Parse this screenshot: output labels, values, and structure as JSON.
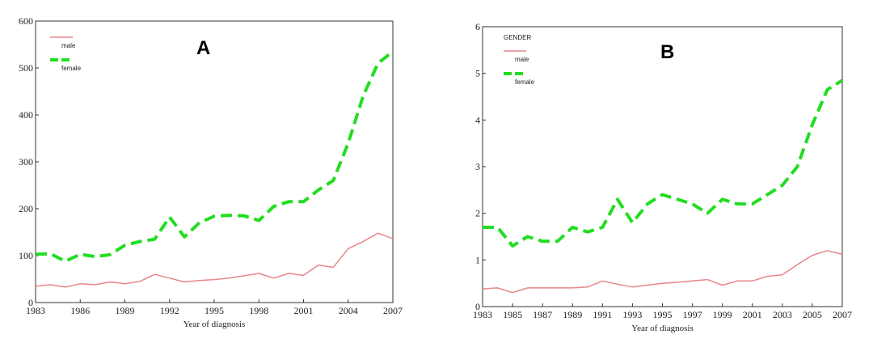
{
  "chart_data": [
    {
      "type": "line",
      "panel_label": "A",
      "xlabel": "Year of diagnosis",
      "ylabel": "",
      "xlim": [
        1983,
        2007
      ],
      "ylim": [
        0,
        600
      ],
      "xticks": [
        1983,
        1986,
        1989,
        1992,
        1995,
        1998,
        2001,
        2004,
        2007
      ],
      "yticks": [
        0,
        100,
        200,
        300,
        400,
        500,
        600
      ],
      "legend_title": "",
      "legend_position": "top-left",
      "x": [
        1983,
        1984,
        1985,
        1986,
        1987,
        1988,
        1989,
        1990,
        1991,
        1992,
        1993,
        1994,
        1995,
        1996,
        1997,
        1998,
        1999,
        2000,
        2001,
        2002,
        2003,
        2004,
        2005,
        2006,
        2007
      ],
      "series": [
        {
          "name": "male",
          "color": "#e8868a",
          "style": "solid",
          "values": [
            35,
            38,
            33,
            40,
            38,
            44,
            40,
            45,
            60,
            52,
            44,
            47,
            49,
            52,
            57,
            62,
            52,
            62,
            58,
            80,
            75,
            115,
            130,
            148,
            136
          ]
        },
        {
          "name": "female",
          "color": "#22dd22",
          "style": "dashed",
          "values": [
            103,
            104,
            88,
            103,
            98,
            102,
            122,
            130,
            135,
            182,
            140,
            170,
            184,
            186,
            185,
            175,
            205,
            215,
            215,
            240,
            260,
            340,
            440,
            510,
            535
          ]
        }
      ]
    },
    {
      "type": "line",
      "panel_label": "B",
      "xlabel": "Year of diagnosis",
      "ylabel": "",
      "xlim": [
        1983,
        2007
      ],
      "ylim": [
        0,
        6
      ],
      "xticks": [
        1983,
        1985,
        1987,
        1989,
        1991,
        1993,
        1995,
        1997,
        1999,
        2001,
        2003,
        2005,
        2007
      ],
      "yticks": [
        0,
        1,
        2,
        3,
        4,
        5,
        6
      ],
      "legend_title": "GENDER",
      "legend_position": "top-left",
      "x": [
        1983,
        1984,
        1985,
        1986,
        1987,
        1988,
        1989,
        1990,
        1991,
        1992,
        1993,
        1994,
        1995,
        1996,
        1997,
        1998,
        1999,
        2000,
        2001,
        2002,
        2003,
        2004,
        2005,
        2006,
        2007
      ],
      "series": [
        {
          "name": "male",
          "color": "#e8868a",
          "style": "solid",
          "values": [
            0.38,
            0.4,
            0.3,
            0.4,
            0.4,
            0.4,
            0.4,
            0.42,
            0.55,
            0.48,
            0.42,
            0.46,
            0.5,
            0.52,
            0.55,
            0.58,
            0.46,
            0.55,
            0.55,
            0.65,
            0.68,
            0.9,
            1.1,
            1.2,
            1.12
          ]
        },
        {
          "name": "female",
          "color": "#22dd22",
          "style": "dashed",
          "values": [
            1.7,
            1.7,
            1.3,
            1.5,
            1.4,
            1.4,
            1.7,
            1.6,
            1.7,
            2.3,
            1.8,
            2.2,
            2.4,
            2.3,
            2.2,
            2.0,
            2.3,
            2.2,
            2.2,
            2.4,
            2.6,
            3.0,
            3.9,
            4.65,
            4.85
          ]
        }
      ]
    }
  ]
}
